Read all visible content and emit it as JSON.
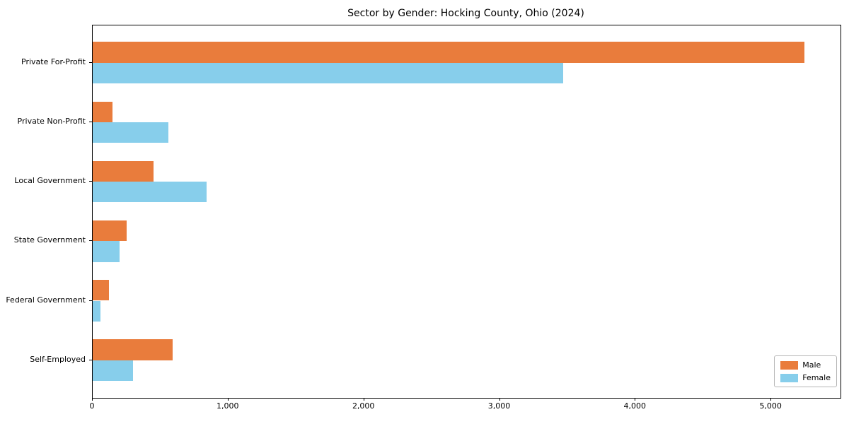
{
  "title": "Sector by Gender: Hocking County, Ohio (2024)",
  "chart_data": {
    "type": "bar",
    "orientation": "horizontal",
    "title": "Sector by Gender: Hocking County, Ohio (2024)",
    "categories": [
      "Private For-Profit",
      "Private Non-Profit",
      "Local Government",
      "State Government",
      "Federal Government",
      "Self-Employed"
    ],
    "series": [
      {
        "name": "Male",
        "color": "#e97c3c",
        "values": [
          5245,
          145,
          450,
          250,
          120,
          590
        ]
      },
      {
        "name": "Female",
        "color": "#87ceeb",
        "values": [
          3465,
          560,
          840,
          200,
          55,
          295
        ]
      }
    ],
    "xlabel": "",
    "ylabel": "",
    "xlim": [
      0,
      5510
    ],
    "x_ticks": [
      0,
      1000,
      2000,
      3000,
      4000,
      5000
    ],
    "x_tick_labels": [
      "0",
      "1,000",
      "2,000",
      "3,000",
      "4,000",
      "5,000"
    ],
    "grid": false,
    "legend_position": "lower right",
    "background_color": "#ffffff",
    "spine_color": "#000000"
  }
}
